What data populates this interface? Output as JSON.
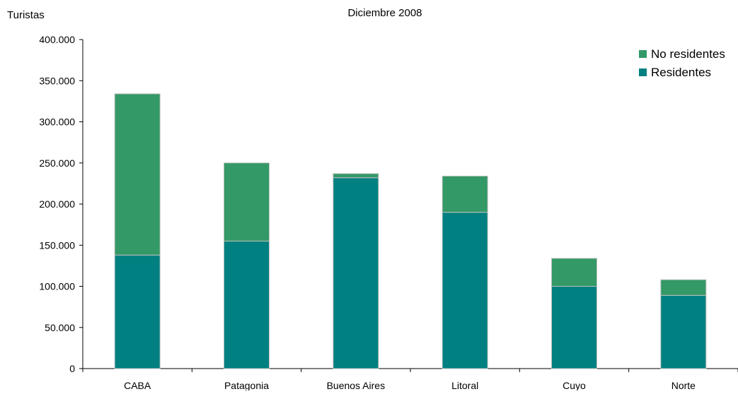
{
  "chart_data": {
    "type": "bar",
    "stacked": true,
    "title": "Diciembre 2008",
    "ylabel": "Turistas",
    "xlabel": "",
    "ylim": [
      0,
      400000
    ],
    "ytick_labels": [
      "0",
      "50.000",
      "100.000",
      "150.000",
      "200.000",
      "250.000",
      "300.000",
      "350.000",
      "400.000"
    ],
    "ytick_values": [
      0,
      50000,
      100000,
      150000,
      200000,
      250000,
      300000,
      350000,
      400000
    ],
    "categories": [
      "CABA",
      "Patagonia",
      "Buenos Aires",
      "Litoral",
      "Cuyo",
      "Norte"
    ],
    "series": [
      {
        "name": "Residentes",
        "values": [
          138000,
          155000,
          232000,
          190000,
          100000,
          89000
        ],
        "color": "#008080"
      },
      {
        "name": "No residentes",
        "values": [
          196000,
          95000,
          5000,
          44000,
          34000,
          19000
        ],
        "color": "#339966"
      }
    ],
    "legend_position": "top-right",
    "grid": false
  }
}
